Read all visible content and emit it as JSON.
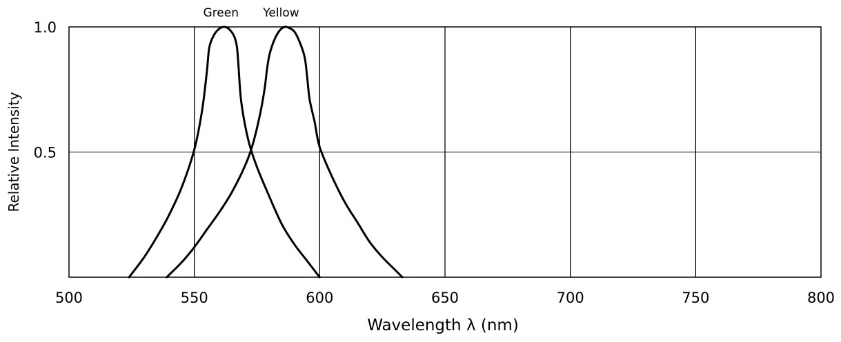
{
  "chart_data": {
    "type": "line",
    "title": "",
    "xlabel": "Wavelength λ (nm)",
    "ylabel": "Relative Intensity",
    "xlim": [
      500,
      800
    ],
    "ylim": [
      0,
      1
    ],
    "x_ticks": [
      500,
      550,
      600,
      650,
      700,
      750,
      800
    ],
    "y_ticks": [
      0.5,
      1.0
    ],
    "y_tick_labels": [
      "0.5",
      "1.0"
    ],
    "grid": true,
    "series": [
      {
        "name": "Green",
        "points": [
          [
            524,
            0.0
          ],
          [
            530,
            0.08
          ],
          [
            535,
            0.16
          ],
          [
            540,
            0.25
          ],
          [
            545,
            0.36
          ],
          [
            550,
            0.51
          ],
          [
            553,
            0.66
          ],
          [
            555,
            0.82
          ],
          [
            556,
            0.92
          ],
          [
            558,
            0.97
          ],
          [
            560,
            0.993
          ],
          [
            562,
            1.0
          ],
          [
            564,
            0.99
          ],
          [
            566,
            0.96
          ],
          [
            567,
            0.92
          ],
          [
            567.5,
            0.86
          ],
          [
            568.5,
            0.72
          ],
          [
            570,
            0.62
          ],
          [
            572,
            0.53
          ],
          [
            575,
            0.44
          ],
          [
            580,
            0.32
          ],
          [
            585,
            0.21
          ],
          [
            590,
            0.13
          ],
          [
            595,
            0.065
          ],
          [
            600,
            0.0
          ]
        ]
      },
      {
        "name": "Yellow",
        "points": [
          [
            539,
            0.0
          ],
          [
            545,
            0.06
          ],
          [
            550,
            0.12
          ],
          [
            555,
            0.19
          ],
          [
            560,
            0.26
          ],
          [
            565,
            0.34
          ],
          [
            570,
            0.44
          ],
          [
            573,
            0.52
          ],
          [
            576,
            0.64
          ],
          [
            578,
            0.75
          ],
          [
            579,
            0.83
          ],
          [
            580,
            0.89
          ],
          [
            582,
            0.95
          ],
          [
            584,
            0.985
          ],
          [
            586,
            1.0
          ],
          [
            588,
            0.995
          ],
          [
            590,
            0.98
          ],
          [
            592,
            0.94
          ],
          [
            594,
            0.88
          ],
          [
            595,
            0.8
          ],
          [
            596,
            0.71
          ],
          [
            598,
            0.62
          ],
          [
            600,
            0.52
          ],
          [
            605,
            0.4
          ],
          [
            610,
            0.3
          ],
          [
            615,
            0.22
          ],
          [
            620,
            0.14
          ],
          [
            625,
            0.08
          ],
          [
            630,
            0.03
          ],
          [
            633,
            0.0
          ]
        ]
      }
    ]
  }
}
